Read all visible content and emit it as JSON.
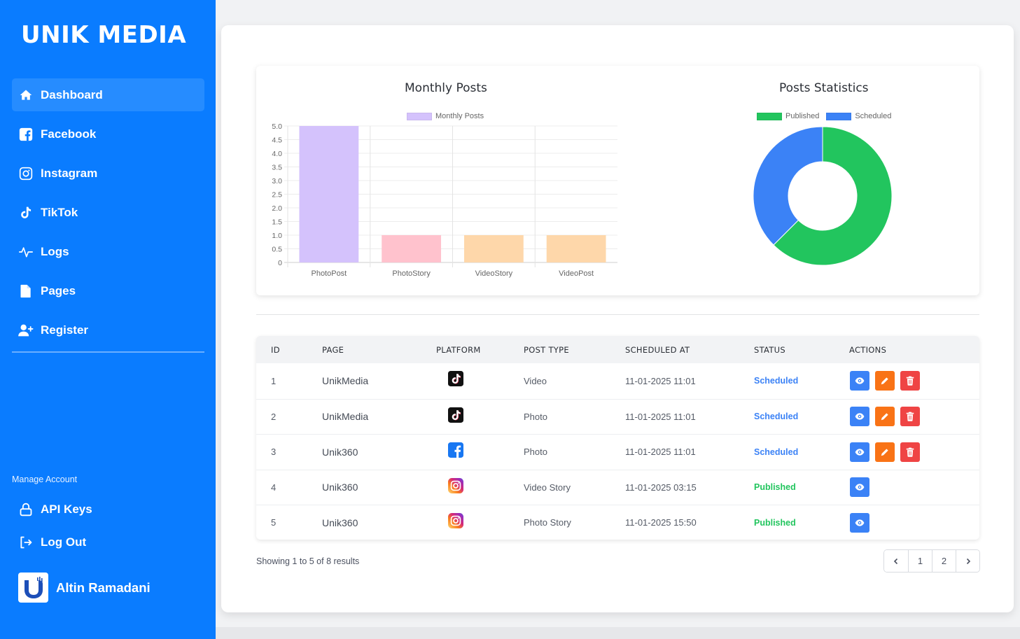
{
  "brand": {
    "logo_text": "UNIK MEDIA"
  },
  "sidebar": {
    "items": [
      {
        "label": "Dashboard",
        "icon": "home-icon",
        "active": true
      },
      {
        "label": "Facebook",
        "icon": "facebook-icon",
        "active": false
      },
      {
        "label": "Instagram",
        "icon": "instagram-icon",
        "active": false
      },
      {
        "label": "TikTok",
        "icon": "tiktok-icon",
        "active": false
      },
      {
        "label": "Logs",
        "icon": "activity-icon",
        "active": false
      },
      {
        "label": "Pages",
        "icon": "file-icon",
        "active": false
      },
      {
        "label": "Register",
        "icon": "user-plus-icon",
        "active": false
      }
    ],
    "manage_label": "Manage Account",
    "account_items": [
      {
        "label": "API Keys",
        "icon": "lock-icon"
      },
      {
        "label": "Log Out",
        "icon": "logout-icon"
      }
    ],
    "user_name": "Altin Ramadani"
  },
  "colors": {
    "sidebar_bg": "#0a7cff",
    "published": "#22c55e",
    "scheduled": "#3b82f6",
    "view_btn": "#3b82f6",
    "edit_btn": "#f97316",
    "delete_btn": "#ef4444"
  },
  "chart_data": [
    {
      "type": "bar",
      "title": "Monthly Posts",
      "legend": [
        "Monthly Posts"
      ],
      "legend_position": "top",
      "categories": [
        "PhotoPost",
        "PhotoStory",
        "VideoStory",
        "VideoPost"
      ],
      "values": [
        5,
        1,
        1,
        1
      ],
      "colors": [
        "#d4c2fc",
        "#ffc2cd",
        "#fed7aa",
        "#fed7aa"
      ],
      "ylim": [
        0,
        5
      ],
      "yticks": [
        "0",
        "0.5",
        "1.0",
        "1.5",
        "2.0",
        "2.5",
        "3.0",
        "3.5",
        "4.0",
        "4.5",
        "5.0"
      ],
      "xlabel": "",
      "ylabel": "",
      "grid": true
    },
    {
      "type": "pie",
      "donut": true,
      "title": "Posts Statistics",
      "legend_position": "top",
      "categories": [
        "Published",
        "Scheduled"
      ],
      "values": [
        5,
        3
      ],
      "colors": [
        "#22c55e",
        "#3b82f6"
      ]
    }
  ],
  "table": {
    "headers": [
      "ID",
      "PAGE",
      "PLATFORM",
      "POST TYPE",
      "SCHEDULED AT",
      "STATUS",
      "ACTIONS"
    ],
    "rows": [
      {
        "id": "1",
        "page": "UnikMedia",
        "platform": "tiktok",
        "post_type": "Video",
        "scheduled_at": "11-01-2025 11:01",
        "status": "Scheduled",
        "actions": [
          "view",
          "edit",
          "delete"
        ]
      },
      {
        "id": "2",
        "page": "UnikMedia",
        "platform": "tiktok",
        "post_type": "Photo",
        "scheduled_at": "11-01-2025 11:01",
        "status": "Scheduled",
        "actions": [
          "view",
          "edit",
          "delete"
        ]
      },
      {
        "id": "3",
        "page": "Unik360",
        "platform": "facebook",
        "post_type": "Photo",
        "scheduled_at": "11-01-2025 11:01",
        "status": "Scheduled",
        "actions": [
          "view",
          "edit",
          "delete"
        ]
      },
      {
        "id": "4",
        "page": "Unik360",
        "platform": "instagram",
        "post_type": "Video Story",
        "scheduled_at": "11-01-2025 03:15",
        "status": "Published",
        "actions": [
          "view"
        ]
      },
      {
        "id": "5",
        "page": "Unik360",
        "platform": "instagram",
        "post_type": "Photo Story",
        "scheduled_at": "11-01-2025 15:50",
        "status": "Published",
        "actions": [
          "view"
        ]
      }
    ]
  },
  "pagination": {
    "summary": "Showing 1 to 5 of 8 results",
    "prev": "‹",
    "pages": [
      "1",
      "2"
    ],
    "next": "›"
  }
}
